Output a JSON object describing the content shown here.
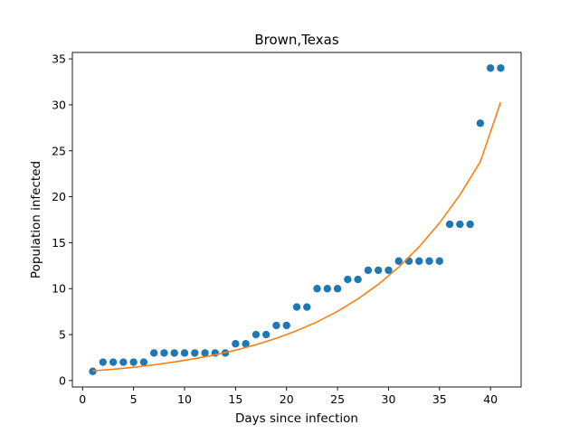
{
  "chart_data": {
    "type": "scatter",
    "title": "Brown,Texas",
    "xlabel": "Days since infection",
    "ylabel": "Population infected",
    "xlim": [
      -1,
      43
    ],
    "ylim": [
      -0.7,
      35.7
    ],
    "xticks": [
      0,
      5,
      10,
      15,
      20,
      25,
      30,
      35,
      40
    ],
    "yticks": [
      0,
      5,
      10,
      15,
      20,
      25,
      30,
      35
    ],
    "grid": false,
    "series": [
      {
        "type": "scatter",
        "color": "#1f77b4",
        "x": [
          1,
          2,
          3,
          4,
          5,
          6,
          7,
          8,
          9,
          10,
          11,
          12,
          13,
          14,
          15,
          16,
          17,
          18,
          19,
          20,
          21,
          22,
          23,
          24,
          25,
          26,
          27,
          28,
          29,
          30,
          31,
          32,
          33,
          34,
          35,
          36,
          37,
          38,
          39,
          40,
          41
        ],
        "y": [
          1,
          2,
          2,
          2,
          2,
          2,
          3,
          3,
          3,
          3,
          3,
          3,
          3,
          3,
          4,
          4,
          5,
          5,
          6,
          6,
          8,
          8,
          10,
          10,
          10,
          11,
          11,
          12,
          12,
          12,
          13,
          13,
          13,
          13,
          13,
          17,
          17,
          17,
          28,
          34,
          34
        ]
      },
      {
        "type": "line",
        "color": "#ff7f0e",
        "x": [
          1,
          3,
          5,
          7,
          9,
          11,
          13,
          15,
          17,
          19,
          21,
          23,
          25,
          27,
          29,
          31,
          33,
          35,
          37,
          39,
          41
        ],
        "y": [
          1.05,
          1.23,
          1.45,
          1.71,
          2.02,
          2.38,
          2.8,
          3.3,
          3.9,
          4.6,
          5.42,
          6.39,
          7.53,
          8.88,
          10.47,
          12.34,
          14.55,
          17.15,
          20.2,
          23.8,
          30.3
        ]
      }
    ]
  }
}
